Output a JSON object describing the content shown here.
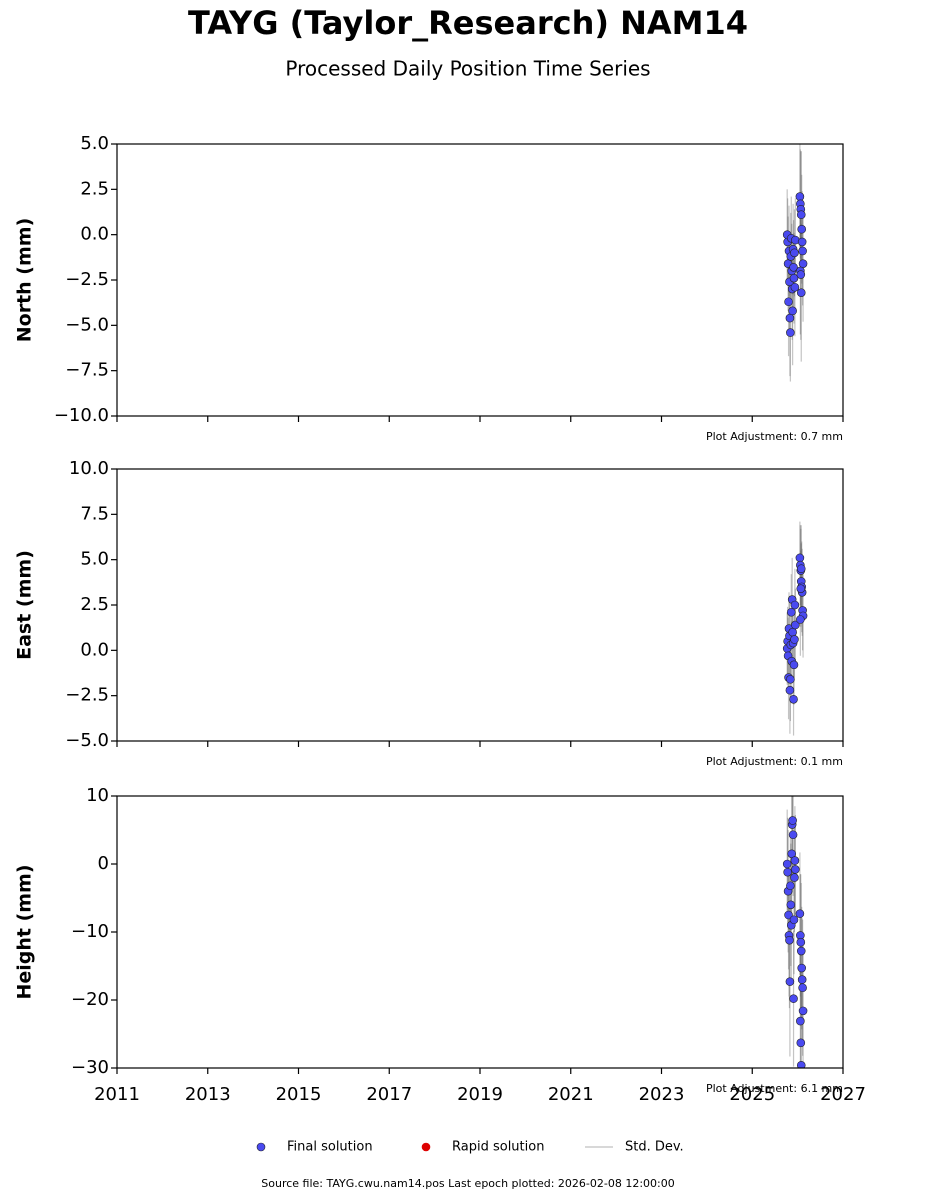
{
  "title": "TAYG (Taylor_Research) NAM14",
  "subtitle": "Processed Daily Position Time Series",
  "footer": "Source file: TAYG.cwu.nam14.pos  Last epoch plotted: 2026-02-08 12:00:00",
  "legend": [
    {
      "name": "Final solution",
      "color": "#4a4af0"
    },
    {
      "name": "Rapid solution",
      "color": "#dd0000"
    },
    {
      "name": "Std. Dev.",
      "color": "#cccccc"
    }
  ],
  "chart_data": [
    {
      "type": "scatter",
      "y_label": "North (mm)",
      "annotation": "Plot Adjustment: 0.7 mm",
      "xlim": [
        2011,
        2027
      ],
      "xticks": [
        2011,
        2013,
        2015,
        2017,
        2019,
        2021,
        2023,
        2025,
        2027
      ],
      "show_xtick_labels": false,
      "ylim": [
        -10,
        5
      ],
      "yticks": [
        {
          "value": -10,
          "label": "−10.0"
        },
        {
          "value": -7.5,
          "label": "−7.5"
        },
        {
          "value": -5,
          "label": "−5.0"
        },
        {
          "value": -2.5,
          "label": "−2.5"
        },
        {
          "value": 0,
          "label": "0.0"
        },
        2.5,
        {
          "value": 5,
          "label": "5.0"
        }
      ],
      "x": [
        2025.77,
        2025.78,
        2025.79,
        2025.8,
        2025.81,
        2025.82,
        2025.83,
        2025.84,
        2025.85,
        2025.86,
        2025.87,
        2025.88,
        2025.89,
        2025.9,
        2025.91,
        2025.92,
        2025.93,
        2025.94,
        2025.95,
        2026.05,
        2026.06,
        2026.07,
        2026.08,
        2026.09,
        2026.1,
        2026.11,
        2026.12,
        2026.06,
        2026.07,
        2026.08
      ],
      "series": [
        {
          "name": "Final solution",
          "color": "#4a4af0",
          "values": [
            0.0,
            -0.4,
            -1.6,
            -3.7,
            -0.9,
            -2.6,
            -4.6,
            -5.4,
            -1.2,
            -0.2,
            -2.0,
            -3.0,
            -4.2,
            -0.8,
            -1.8,
            -2.4,
            -1.0,
            -2.9,
            -0.3,
            2.1,
            1.7,
            1.4,
            1.1,
            0.3,
            -0.4,
            -0.9,
            -1.6,
            -2.0,
            -2.2,
            -3.2
          ],
          "error": [
            2.5,
            2.4,
            2.6,
            3.0,
            2.5,
            2.7,
            3.2,
            2.7,
            2.4,
            2.3,
            2.6,
            2.8,
            3.0,
            2.5,
            2.6,
            2.5,
            2.4,
            2.7,
            2.3,
            2.9,
            3.0,
            3.2,
            3.5,
            3.0,
            2.8,
            3.0,
            3.2,
            3.5,
            3.6,
            3.8
          ]
        }
      ]
    },
    {
      "type": "scatter",
      "y_label": "East (mm)",
      "annotation": "Plot Adjustment: 0.1 mm",
      "xlim": [
        2011,
        2027
      ],
      "xticks": [
        2011,
        2013,
        2015,
        2017,
        2019,
        2021,
        2023,
        2025,
        2027
      ],
      "show_xtick_labels": false,
      "ylim": [
        -5,
        10
      ],
      "yticks": [
        {
          "value": -5,
          "label": "−5.0"
        },
        {
          "value": -2.5,
          "label": "−2.5"
        },
        {
          "value": 0,
          "label": "0.0"
        },
        2.5,
        {
          "value": 5,
          "label": "5.0"
        },
        7.5,
        {
          "value": 10,
          "label": "10.0"
        }
      ],
      "x": [
        2025.77,
        2025.78,
        2025.79,
        2025.8,
        2025.81,
        2025.82,
        2025.83,
        2025.84,
        2025.85,
        2025.86,
        2025.87,
        2025.88,
        2025.89,
        2025.9,
        2025.91,
        2025.92,
        2025.93,
        2025.94,
        2025.95,
        2026.05,
        2026.06,
        2026.07,
        2026.08,
        2026.09,
        2026.1,
        2026.11,
        2026.12,
        2026.06,
        2026.07,
        2026.08
      ],
      "series": [
        {
          "name": "Final solution",
          "color": "#4a4af0",
          "values": [
            0.1,
            0.5,
            -0.3,
            -1.5,
            1.2,
            0.8,
            -2.2,
            -1.6,
            0.3,
            2.1,
            -0.6,
            2.8,
            1.0,
            0.4,
            -2.7,
            -0.8,
            0.6,
            2.5,
            1.4,
            5.1,
            4.7,
            4.4,
            3.8,
            3.5,
            3.2,
            2.2,
            1.9,
            1.7,
            3.4,
            4.5
          ],
          "error": [
            2.0,
            1.9,
            2.1,
            2.3,
            2.0,
            2.2,
            2.4,
            2.3,
            2.0,
            2.1,
            2.2,
            2.3,
            2.0,
            2.1,
            2.0,
            2.2,
            2.1,
            2.0,
            2.0,
            2.0,
            2.2,
            2.3,
            2.1,
            2.5,
            2.4,
            2.2,
            2.3,
            2.0,
            2.1,
            2.4
          ]
        }
      ]
    },
    {
      "type": "scatter",
      "y_label": "Height (mm)",
      "annotation": "Plot Adjustment: 6.1 mm",
      "xlim": [
        2011,
        2027
      ],
      "xticks": [
        2011,
        2013,
        2015,
        2017,
        2019,
        2021,
        2023,
        2025,
        2027
      ],
      "show_xtick_labels": true,
      "ylim": [
        -30,
        10
      ],
      "yticks": [
        {
          "value": -30,
          "label": "−30"
        },
        {
          "value": -20,
          "label": "−20"
        },
        {
          "value": -10,
          "label": "−10"
        },
        0,
        10
      ],
      "x": [
        2025.77,
        2025.78,
        2025.79,
        2025.8,
        2025.81,
        2025.82,
        2025.83,
        2025.84,
        2025.85,
        2025.86,
        2025.87,
        2025.88,
        2025.89,
        2025.9,
        2025.91,
        2025.92,
        2025.93,
        2025.94,
        2025.95,
        2026.05,
        2026.06,
        2026.07,
        2026.08,
        2026.09,
        2026.1,
        2026.11,
        2026.12,
        2026.06,
        2026.07,
        2026.08
      ],
      "series": [
        {
          "name": "Final solution",
          "color": "#4a4af0",
          "values": [
            0.0,
            -1.2,
            -4.0,
            -7.5,
            -10.5,
            -11.2,
            -17.3,
            -3.2,
            -6.0,
            -9.0,
            1.5,
            5.8,
            6.4,
            4.3,
            -19.8,
            -8.2,
            -2.0,
            0.5,
            -0.8,
            -7.3,
            -10.5,
            -11.5,
            -12.8,
            -15.3,
            -17.0,
            -18.2,
            -21.6,
            -23.1,
            -26.3,
            -29.6
          ],
          "error": [
            8,
            8,
            9,
            8,
            9,
            10,
            11,
            8,
            9,
            8,
            9,
            10,
            10,
            9,
            10,
            8,
            8,
            8,
            8,
            9,
            9,
            10,
            10,
            9,
            9,
            10,
            10,
            11,
            11,
            12
          ]
        }
      ]
    }
  ]
}
